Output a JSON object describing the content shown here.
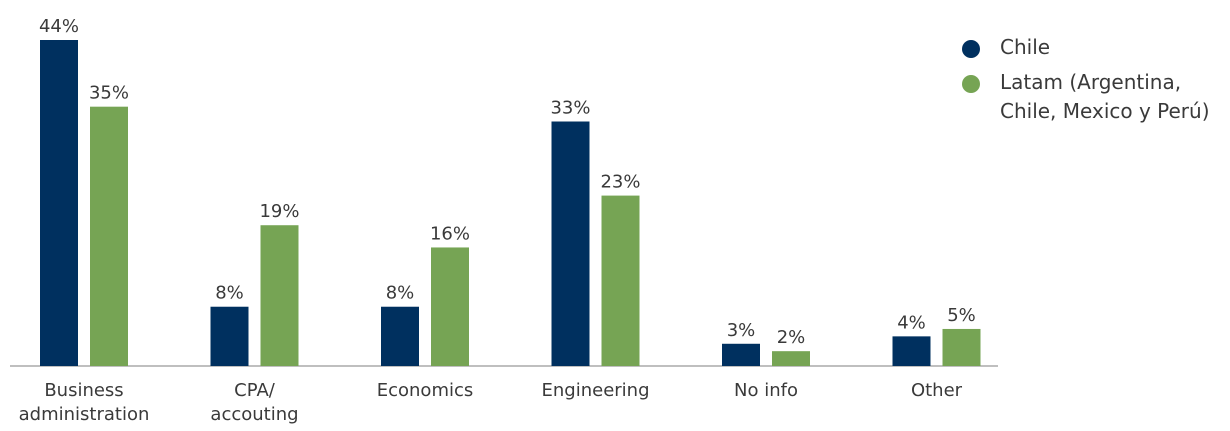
{
  "chart_data": {
    "type": "bar",
    "title": "",
    "xlabel": "",
    "ylabel": "",
    "ylim": [
      0,
      44
    ],
    "grid": false,
    "legend_position": "top-right",
    "categories": [
      [
        "Business",
        "administration"
      ],
      [
        "CPA/",
        "accouting"
      ],
      [
        "Economics"
      ],
      [
        "Engineering"
      ],
      [
        "No info"
      ],
      [
        "Other"
      ]
    ],
    "series": [
      {
        "name": "Chile",
        "color": "#00305f",
        "values": [
          44,
          8,
          8,
          33,
          3,
          4
        ],
        "labels": [
          "44%",
          "8%",
          "8%",
          "33%",
          "3%",
          "4%"
        ]
      },
      {
        "name": "Latam (Argentina, Chile, Mexico y Perú)",
        "name_lines": [
          "Latam (Argentina,",
          "Chile, Mexico y Perú)"
        ],
        "color": "#76a454",
        "values": [
          35,
          19,
          16,
          23,
          2,
          5
        ],
        "labels": [
          "35%",
          "19%",
          "16%",
          "23%",
          "2%",
          "5%"
        ]
      }
    ]
  }
}
